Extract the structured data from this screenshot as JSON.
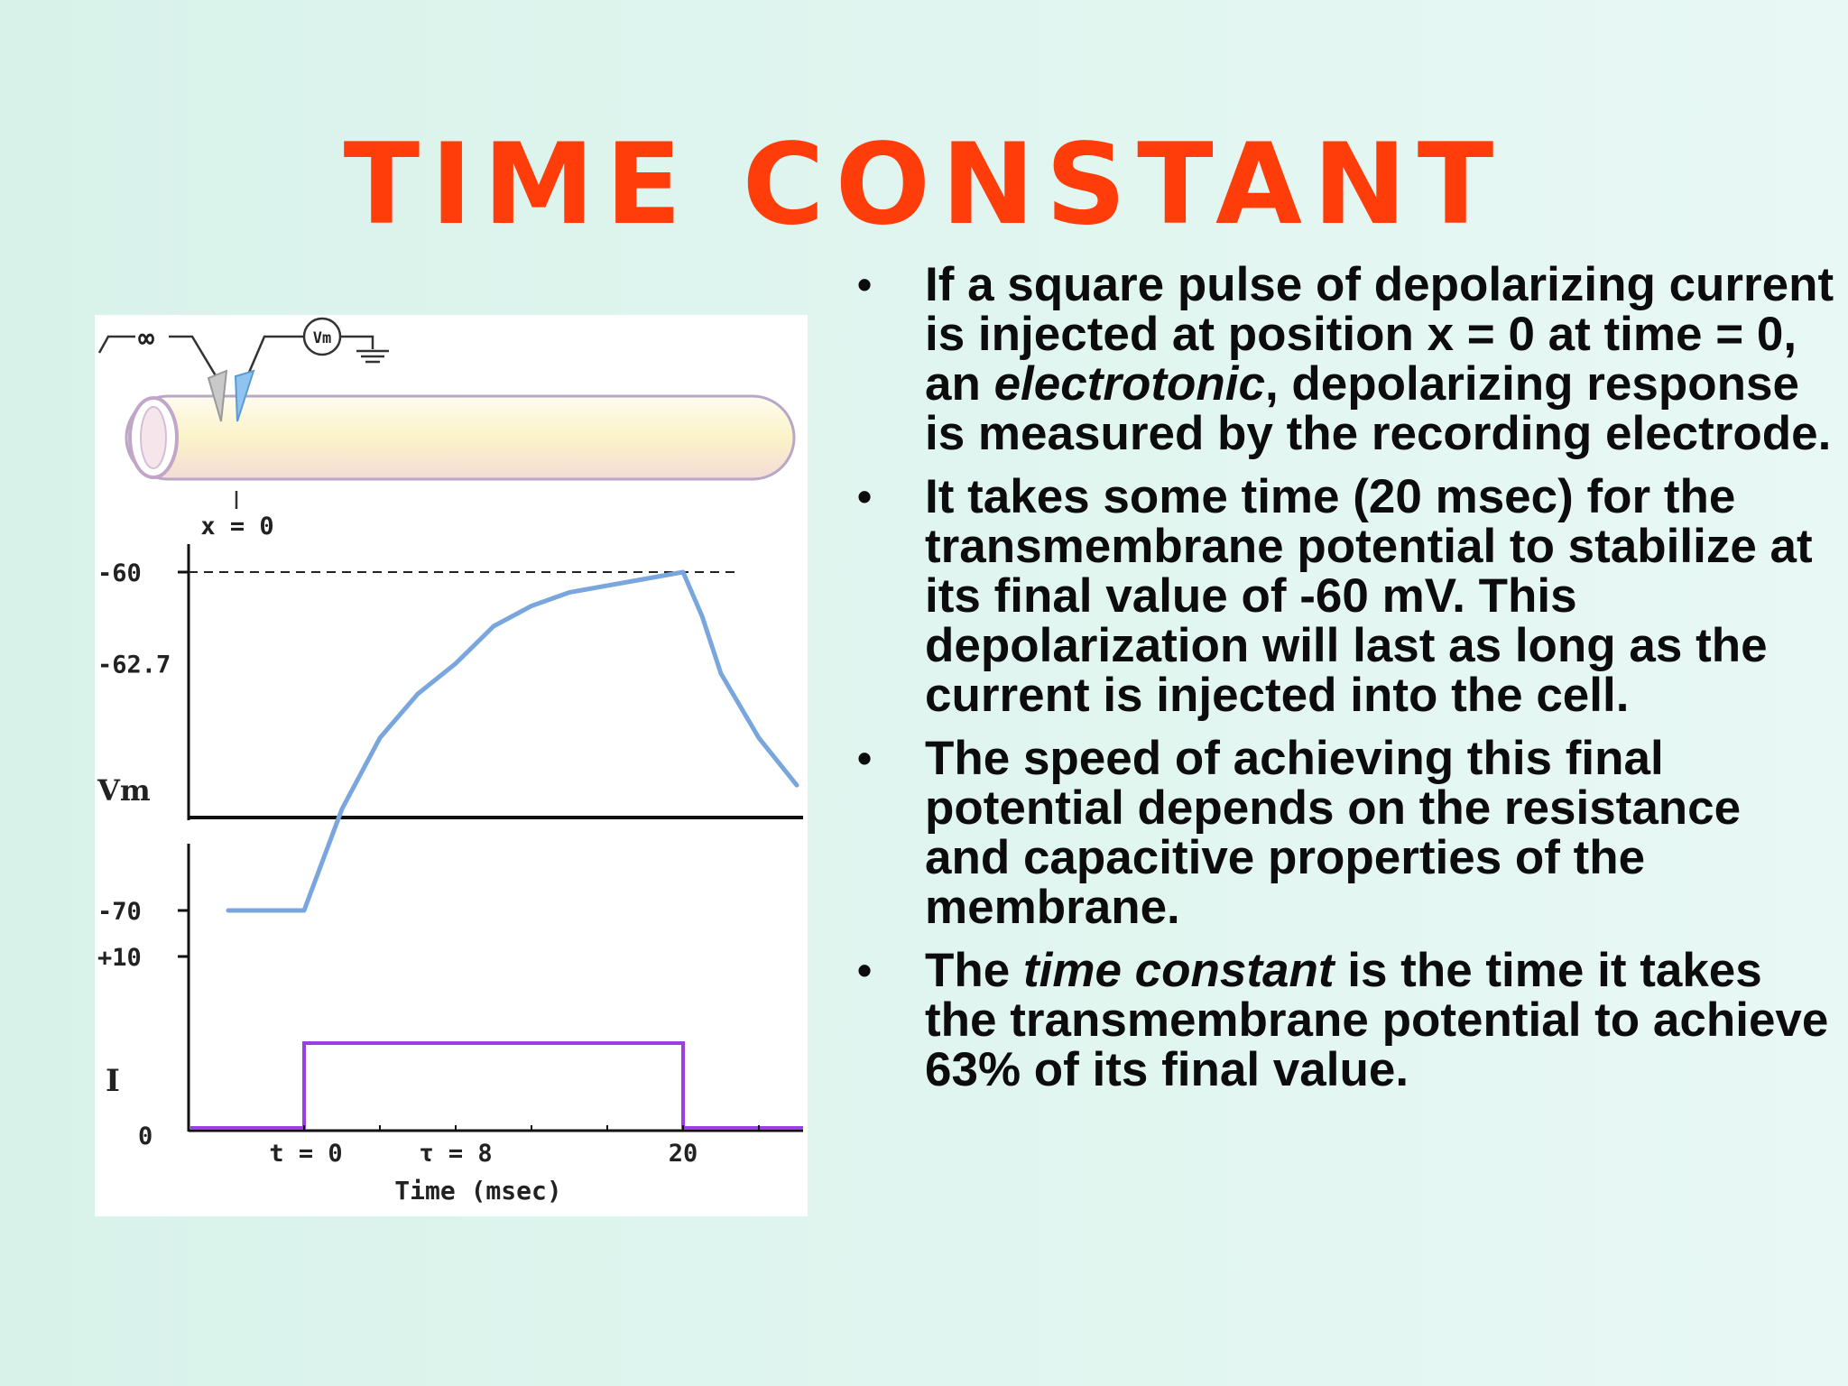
{
  "slide": {
    "title": "TIME CONSTANT",
    "bullets": [
      {
        "parts": [
          {
            "text": "If a square pulse of depolarizing current is injected at position x = 0 at time = 0, an ",
            "italic": false
          },
          {
            "text": "electrotonic",
            "italic": true
          },
          {
            "text": ", depolarizing response is measured by the recording electrode.",
            "italic": false
          }
        ]
      },
      {
        "parts": [
          {
            "text": "It takes some time (20 msec) for the transmembrane potential to stabilize at its final value of -60 mV. This depolarization will last as long as the current is injected into the cell.",
            "italic": false
          }
        ]
      },
      {
        "parts": [
          {
            "text": "The speed of achieving this final potential depends on the resistance and capacitive properties of the membrane.",
            "italic": false
          }
        ]
      },
      {
        "parts": [
          {
            "text": "The ",
            "italic": false
          },
          {
            "text": "time constant",
            "italic": true
          },
          {
            "text": " is the time it takes the transmembrane potential to achieve 63% of its final value.",
            "italic": false
          }
        ]
      }
    ]
  },
  "figure": {
    "stimulator_symbol": "∞",
    "meter_label": "Vm",
    "position_label": "x = 0",
    "vm_axis": {
      "label": "Vm",
      "ticks": [
        {
          "value": -60,
          "label": "-60"
        },
        {
          "value": -62.7,
          "label": "-62.7"
        },
        {
          "value": -70,
          "label": "-70"
        }
      ]
    },
    "i_axis": {
      "label": "I",
      "ticks": [
        {
          "value": 10,
          "label": "+10"
        },
        {
          "value": 0,
          "label": "0"
        }
      ]
    },
    "x_axis": {
      "label": "Time (msec)",
      "ticks": [
        {
          "value": 0,
          "label": "t = 0"
        },
        {
          "value": 8,
          "label": "τ = 8"
        },
        {
          "value": 20,
          "label": "20"
        }
      ]
    },
    "colors": {
      "vm_trace": "#7aa6de",
      "current_trace": "#9a3ee6",
      "cable_fill": "#fbf6d6",
      "cable_stroke": "#b8a7c6",
      "electrode_stim": "#c9c9c9",
      "electrode_rec": "#8fc3f0"
    },
    "chart_data": {
      "type": "line",
      "xlabel": "Time (msec)",
      "x": [
        -4,
        0,
        1,
        2,
        4,
        6,
        8,
        10,
        12,
        14,
        16,
        18,
        20,
        21,
        22,
        24,
        26
      ],
      "series": [
        {
          "name": "Vm",
          "values": [
            -70,
            -70,
            -68.5,
            -67.0,
            -64.9,
            -63.6,
            -62.7,
            -61.6,
            -61.0,
            -60.6,
            -60.4,
            -60.2,
            -60,
            -61.3,
            -63.0,
            -64.9,
            -66.3
          ]
        },
        {
          "name": "I",
          "values": [
            0,
            5,
            5,
            5,
            5,
            5,
            5,
            5,
            5,
            5,
            5,
            5,
            5,
            0,
            0,
            0,
            0
          ]
        }
      ],
      "vm_ylim": [
        -72,
        -59
      ],
      "i_ylim": [
        0,
        15
      ],
      "final_value_line": -60
    }
  }
}
